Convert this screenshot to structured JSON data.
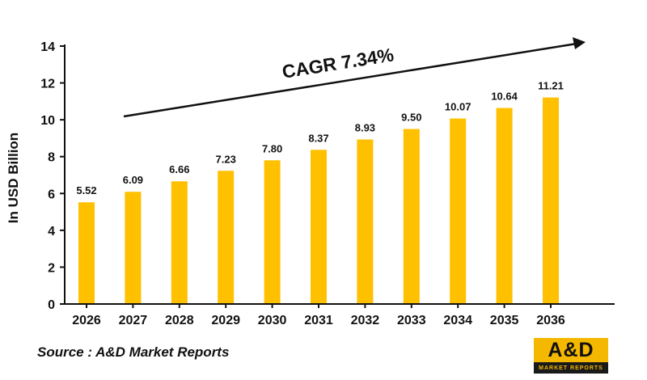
{
  "chart_data": {
    "type": "bar",
    "categories": [
      "2026",
      "2027",
      "2028",
      "2029",
      "2030",
      "2031",
      "2032",
      "2033",
      "2034",
      "2035",
      "2036"
    ],
    "values": [
      5.52,
      6.09,
      6.66,
      7.23,
      7.8,
      8.37,
      8.93,
      9.5,
      10.07,
      10.64,
      11.21
    ],
    "value_labels": [
      "5.52",
      "6.09",
      "6.66",
      "7.23",
      "7.80",
      "8.37",
      "8.93",
      "9.50",
      "10.07",
      "10.64",
      "11.21"
    ],
    "ylabel": "In USD Billion",
    "ylim": [
      0,
      14
    ],
    "yticks": [
      0,
      2,
      4,
      6,
      8,
      10,
      12,
      14
    ],
    "grid": false,
    "bar_color": "#ffc000",
    "annotation": "CAGR 7.34%"
  },
  "source": "Source : A&D Market Reports",
  "logo": {
    "mark": "A&D",
    "tagline": "MARKET REPORTS",
    "colors": {
      "accent": "#f5b800",
      "background": "#1a1a1a"
    }
  }
}
